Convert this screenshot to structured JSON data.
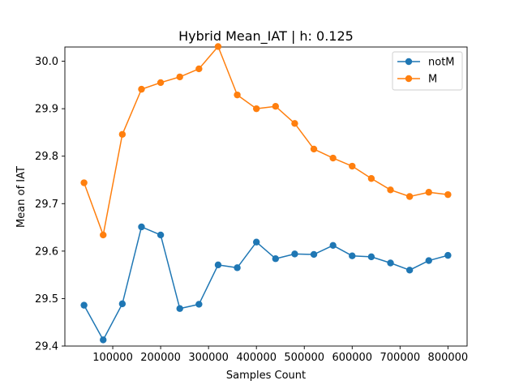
{
  "chart_data": {
    "type": "line",
    "title": "Hybrid Mean_IAT   | h: 0.125",
    "xlabel": "Samples Count",
    "ylabel": "Mean of IAT",
    "xlim": [
      0,
      840000
    ],
    "ylim": [
      29.4,
      30.03
    ],
    "x": [
      40000,
      80000,
      120000,
      160000,
      200000,
      240000,
      280000,
      320000,
      360000,
      400000,
      440000,
      480000,
      520000,
      560000,
      600000,
      640000,
      680000,
      720000,
      760000,
      800000
    ],
    "x_ticks": [
      100000,
      200000,
      300000,
      400000,
      500000,
      600000,
      700000,
      800000
    ],
    "x_tick_labels": [
      "100000",
      "200000",
      "300000",
      "400000",
      "500000",
      "600000",
      "700000",
      "800000"
    ],
    "y_ticks": [
      29.4,
      29.5,
      29.6,
      29.7,
      29.8,
      29.9,
      30.0
    ],
    "y_tick_labels": [
      "29.4",
      "29.5",
      "29.6",
      "29.7",
      "29.8",
      "29.9",
      "30.0"
    ],
    "grid": false,
    "legend_position": "top-right",
    "series": [
      {
        "name": "notM",
        "color": "#1f77b4",
        "values": [
          29.486,
          29.413,
          29.489,
          29.651,
          29.634,
          29.479,
          29.488,
          29.571,
          29.565,
          29.619,
          29.584,
          29.594,
          29.593,
          29.612,
          29.59,
          29.588,
          29.575,
          29.56,
          29.58,
          29.591
        ]
      },
      {
        "name": "M",
        "color": "#ff7f0e",
        "values": [
          29.744,
          29.634,
          29.846,
          29.941,
          29.955,
          29.967,
          29.984,
          30.031,
          29.929,
          29.9,
          29.905,
          29.869,
          29.815,
          29.796,
          29.779,
          29.753,
          29.729,
          29.715,
          29.724,
          29.719
        ]
      }
    ]
  }
}
